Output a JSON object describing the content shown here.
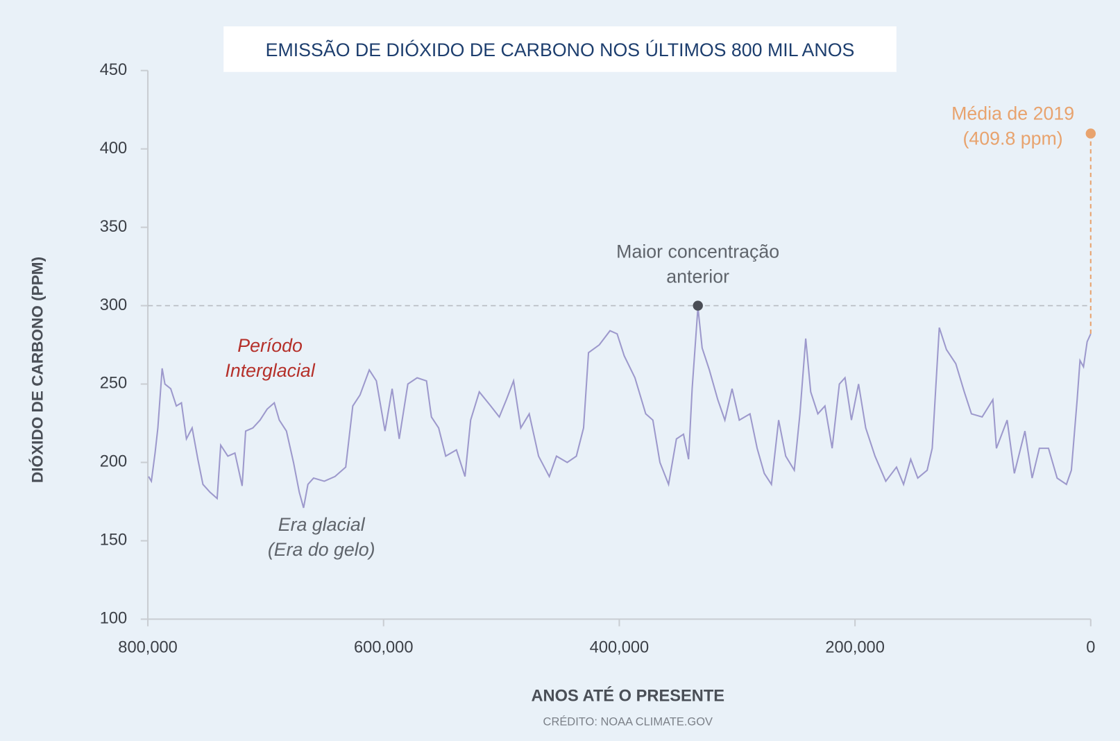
{
  "chart_data": {
    "type": "line",
    "title": "EMISSÃO DE DIÓXIDO DE CARBONO NOS ÚLTIMOS 800 MIL ANOS",
    "x_label": "ANOS ATÉ O PRESENTE",
    "y_label": "DIÓXIDO DE CARBONO (PPM)",
    "credit": "CRÉDITO: NOAA CLIMATE.GOV",
    "color": "#9d99cc",
    "xlim": [
      800000,
      0
    ],
    "ylim": [
      100,
      450
    ],
    "xticks": [
      {
        "value": 800000,
        "label": "800,000"
      },
      {
        "value": 600000,
        "label": "600,000"
      },
      {
        "value": 400000,
        "label": "400,000"
      },
      {
        "value": 200000,
        "label": "200,000"
      },
      0
    ],
    "yticks": [
      100,
      150,
      200,
      250,
      300,
      350,
      400,
      450
    ],
    "x": [
      799400,
      797000,
      793900,
      791500,
      787900,
      785500,
      780600,
      775800,
      771500,
      767300,
      762400,
      757600,
      753300,
      747300,
      741200,
      738200,
      732100,
      726100,
      720000,
      717000,
      710900,
      704800,
      698800,
      692700,
      688500,
      682400,
      676400,
      671500,
      667900,
      664200,
      659400,
      650300,
      641200,
      632100,
      626100,
      620000,
      612100,
      606100,
      598800,
      592700,
      586700,
      579400,
      571500,
      563600,
      559400,
      553300,
      547300,
      538200,
      530900,
      526100,
      518800,
      509100,
      501800,
      495800,
      489700,
      483600,
      476400,
      468500,
      459400,
      453300,
      444200,
      436400,
      430300,
      426100,
      417000,
      407900,
      401800,
      395800,
      386700,
      377600,
      371500,
      365500,
      358200,
      351500,
      345500,
      341200,
      338200,
      333300,
      329700,
      323600,
      316400,
      310400,
      304300,
      298200,
      289100,
      283000,
      277000,
      270900,
      264800,
      258800,
      251500,
      246700,
      241800,
      237600,
      231500,
      225500,
      219400,
      213300,
      208500,
      203000,
      197000,
      190900,
      183000,
      173900,
      164800,
      158800,
      152700,
      146700,
      138800,
      134500,
      128500,
      122400,
      114500,
      107300,
      101200,
      92100,
      83000,
      80000,
      70900,
      64800,
      55800,
      49700,
      43600,
      35800,
      28500,
      20600,
      16400,
      11500,
      9100,
      6100,
      3000,
      0
    ],
    "values": [
      191,
      188,
      206,
      222,
      260,
      250,
      247,
      236,
      238,
      215,
      222,
      202,
      186,
      181,
      177,
      211,
      204,
      206,
      185,
      220,
      222,
      227,
      234,
      238,
      227,
      220,
      200,
      181,
      171,
      186,
      190,
      188,
      191,
      197,
      236,
      243,
      259,
      252,
      220,
      247,
      215,
      250,
      254,
      252,
      229,
      222,
      204,
      208,
      191,
      227,
      245,
      236,
      229,
      240,
      252,
      222,
      231,
      204,
      191,
      204,
      200,
      204,
      222,
      270,
      275,
      284,
      282,
      268,
      254,
      231,
      227,
      200,
      186,
      215,
      218,
      202,
      247,
      299,
      273,
      259,
      240,
      227,
      247,
      227,
      231,
      209,
      193,
      186,
      227,
      204,
      195,
      231,
      279,
      245,
      231,
      236,
      209,
      250,
      254,
      227,
      250,
      222,
      204,
      188,
      197,
      186,
      202,
      190,
      195,
      209,
      286,
      272,
      263,
      245,
      231,
      229,
      240,
      209,
      227,
      193,
      220,
      190,
      209,
      209,
      190,
      186,
      195,
      240,
      265,
      261,
      277,
      282
    ],
    "reference_line": {
      "value": 300,
      "color": "#b8bcc2"
    },
    "highlights": [
      {
        "x": 333300,
        "y": 300,
        "color": "#4a4d55"
      },
      {
        "x": 0,
        "y": 409.8,
        "color": "#e8a36e"
      }
    ],
    "annotations": [
      {
        "lines": [
          "Período",
          "Interglacial"
        ],
        "color": "#b5302a",
        "italic": true
      },
      {
        "lines": [
          "Era glacial",
          "(Era do gelo)"
        ],
        "color": "#5f646b",
        "italic": true
      },
      {
        "lines": [
          "Maior concentração",
          "anterior"
        ],
        "color": "#5f646b",
        "italic": false
      },
      {
        "lines": [
          "Média de 2019",
          "(409.8 ppm)"
        ],
        "color": "#e8a36e",
        "italic": false
      }
    ]
  }
}
